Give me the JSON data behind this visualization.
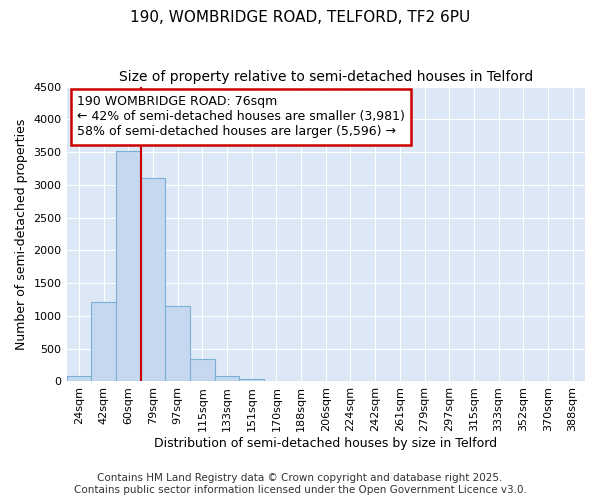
{
  "title1": "190, WOMBRIDGE ROAD, TELFORD, TF2 6PU",
  "title2": "Size of property relative to semi-detached houses in Telford",
  "xlabel": "Distribution of semi-detached houses by size in Telford",
  "ylabel": "Number of semi-detached properties",
  "categories": [
    "24sqm",
    "42sqm",
    "60sqm",
    "79sqm",
    "97sqm",
    "115sqm",
    "133sqm",
    "151sqm",
    "170sqm",
    "188sqm",
    "206sqm",
    "224sqm",
    "242sqm",
    "261sqm",
    "279sqm",
    "297sqm",
    "315sqm",
    "333sqm",
    "352sqm",
    "370sqm",
    "388sqm"
  ],
  "values": [
    80,
    1220,
    3520,
    3100,
    1150,
    340,
    80,
    40,
    0,
    0,
    0,
    0,
    0,
    0,
    0,
    0,
    0,
    0,
    0,
    0,
    0
  ],
  "bar_color": "#c5d8f0",
  "bar_edge_color": "#7bafd4",
  "vline_x": 2.5,
  "annotation_line1": "190 WOMBRIDGE ROAD: 76sqm",
  "annotation_line2": "← 42% of semi-detached houses are smaller (3,981)",
  "annotation_line3": "58% of semi-detached houses are larger (5,596) →",
  "annotation_box_color": "#ffffff",
  "annotation_box_edge": "#cc0000",
  "vline_color": "#cc0000",
  "ylim": [
    0,
    4500
  ],
  "yticks": [
    0,
    500,
    1000,
    1500,
    2000,
    2500,
    3000,
    3500,
    4000,
    4500
  ],
  "footer1": "Contains HM Land Registry data © Crown copyright and database right 2025.",
  "footer2": "Contains public sector information licensed under the Open Government Licence v3.0.",
  "bg_color": "#ffffff",
  "plot_bg_color": "#dce8f5",
  "grid_color": "#ffffff",
  "title_fontsize": 11,
  "subtitle_fontsize": 10,
  "axis_label_fontsize": 9,
  "tick_fontsize": 8,
  "annotation_fontsize": 9,
  "footer_fontsize": 7.5
}
